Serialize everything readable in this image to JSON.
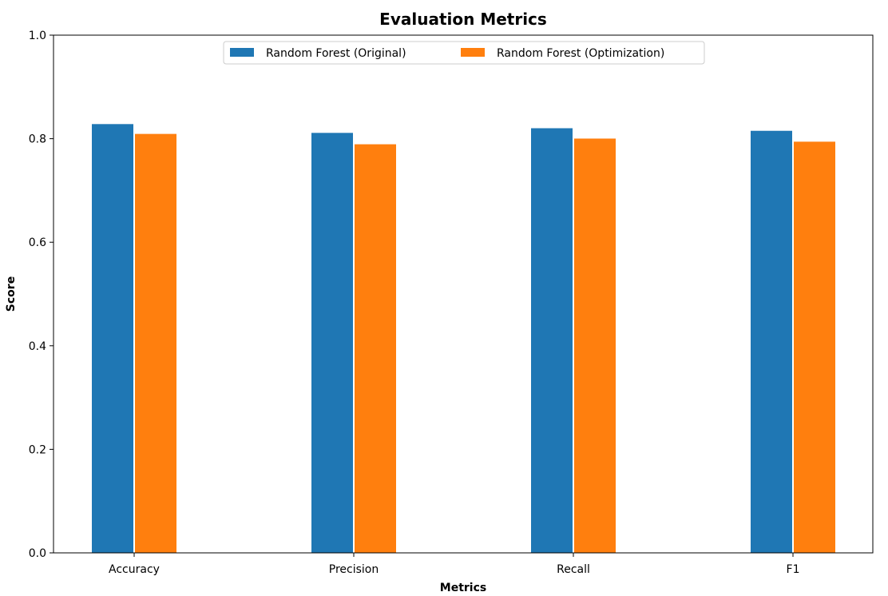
{
  "chart_data": {
    "type": "bar",
    "title": "Evaluation Metrics",
    "xlabel": "Metrics",
    "ylabel": "Score",
    "categories": [
      "Accuracy",
      "Precision",
      "Recall",
      "F1"
    ],
    "series": [
      {
        "name": "Random Forest (Original)",
        "values": [
          0.829,
          0.812,
          0.821,
          0.816
        ],
        "color": "#1f77b4"
      },
      {
        "name": "Random Forest (Optimization)",
        "values": [
          0.81,
          0.79,
          0.801,
          0.795
        ],
        "color": "#ff7f0e"
      }
    ],
    "ylim": [
      0,
      1.0
    ],
    "yticks": [
      "0.0",
      "0.2",
      "0.4",
      "0.6",
      "0.8",
      "1.0"
    ],
    "grid": false,
    "legend_position": "top-center"
  }
}
